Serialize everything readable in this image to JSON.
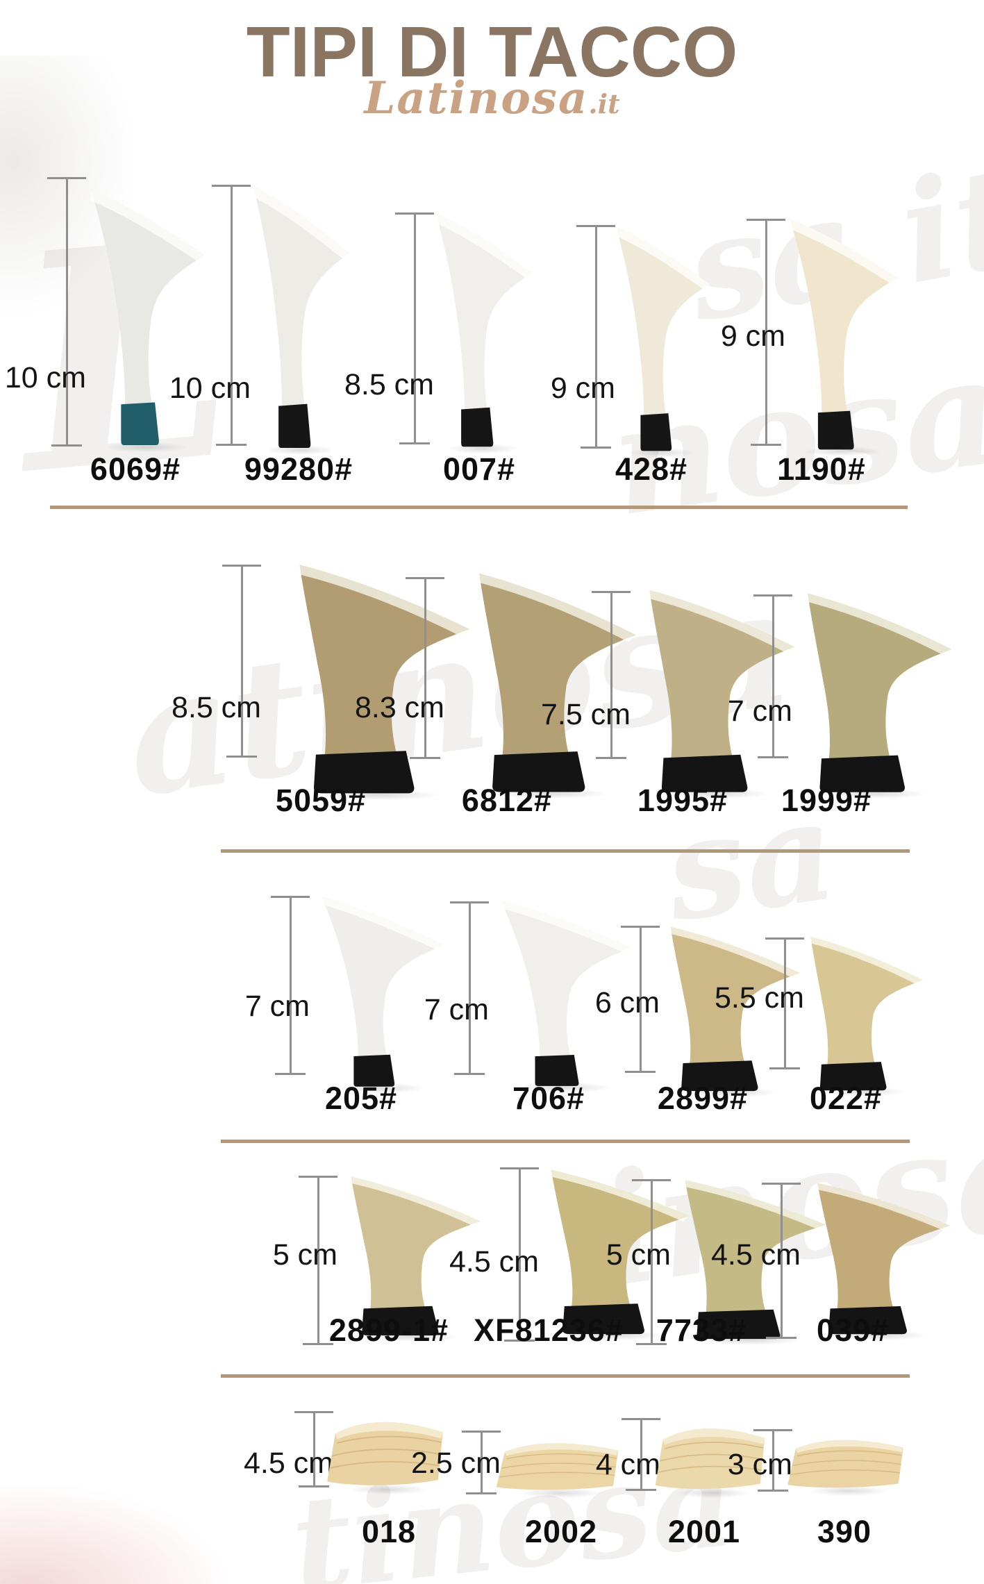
{
  "page": {
    "title": "TIPI DI TACCO",
    "title_color": "#8a7462",
    "brand": "Latinosa",
    "brand_suffix": ".it",
    "brand_color": "#c9a283",
    "divider_color": "#b2977b"
  },
  "watermarks": [
    {
      "text": "L"
    },
    {
      "text": "atinosa"
    },
    {
      "text": "sa it"
    },
    {
      "text": "nosa"
    },
    {
      "text": "inosa"
    },
    {
      "text": "tinosa"
    },
    {
      "text": "sa"
    }
  ],
  "rows": [
    {
      "items": [
        {
          "model": "6069#",
          "height_label": "10 cm",
          "shape": "stiletto",
          "body_color": "#e8e9e4",
          "tip_color": "#215e69"
        },
        {
          "model": "99280#",
          "height_label": "10 cm",
          "shape": "stiletto",
          "body_color": "#edece7",
          "tip_color": "#161616"
        },
        {
          "model": "007#",
          "height_label": "8.5 cm",
          "shape": "stiletto",
          "body_color": "#f0efeb",
          "tip_color": "#161616"
        },
        {
          "model": "428#",
          "height_label": "9 cm",
          "shape": "stiletto",
          "body_color": "#efe9d9",
          "tip_color": "#161616"
        },
        {
          "model": "1190#",
          "height_label": "9 cm",
          "shape": "stiletto",
          "body_color": "#efe6cd",
          "tip_color": "#161616"
        }
      ]
    },
    {
      "items": [
        {
          "model": "5059#",
          "height_label": "8.5 cm",
          "shape": "block",
          "body_color": "#b29d72",
          "tip_color": "#141414"
        },
        {
          "model": "6812#",
          "height_label": "8.3 cm",
          "shape": "block",
          "body_color": "#b3a175",
          "tip_color": "#141414"
        },
        {
          "model": "1995#",
          "height_label": "7.5 cm",
          "shape": "block",
          "body_color": "#c0b088",
          "tip_color": "#141414"
        },
        {
          "model": "1999#",
          "height_label": "7 cm",
          "shape": "block",
          "body_color": "#b5ab7d",
          "tip_color": "#141414"
        }
      ]
    },
    {
      "items": [
        {
          "model": "205#",
          "height_label": "7 cm",
          "shape": "stiletto",
          "body_color": "#efeeec",
          "tip_color": "#141414"
        },
        {
          "model": "706#",
          "height_label": "7 cm",
          "shape": "stiletto",
          "body_color": "#f0efeb",
          "tip_color": "#141414"
        },
        {
          "model": "2899#",
          "height_label": "6 cm",
          "shape": "block",
          "body_color": "#cdb988",
          "tip_color": "#141414"
        },
        {
          "model": "022#",
          "height_label": "5.5 cm",
          "shape": "block",
          "body_color": "#d8c795",
          "tip_color": "#141414"
        }
      ]
    },
    {
      "items": [
        {
          "model": "2899-1#",
          "height_label": "5 cm",
          "shape": "block",
          "body_color": "#cfc096",
          "tip_color": "#141414"
        },
        {
          "model": "XF81236#",
          "height_label": "4.5 cm",
          "shape": "block",
          "body_color": "#c8b77f",
          "tip_color": "#141414"
        },
        {
          "model": "7733#",
          "height_label": "5 cm",
          "shape": "block",
          "body_color": "#c4ba85",
          "tip_color": "#141414"
        },
        {
          "model": "039#",
          "height_label": "4.5 cm",
          "shape": "block",
          "body_color": "#c2aa79",
          "tip_color": "#141414"
        }
      ]
    },
    {
      "items": [
        {
          "model": "018",
          "height_label": "4.5 cm",
          "shape": "wedge",
          "body_color": "#e9d3a2"
        },
        {
          "model": "2002",
          "height_label": "2.5 cm",
          "shape": "wedge",
          "body_color": "#ecd6a6"
        },
        {
          "model": "2001",
          "height_label": "4 cm",
          "shape": "wedge",
          "body_color": "#ecd9ab"
        },
        {
          "model": "390",
          "height_label": "3 cm",
          "shape": "wedge",
          "body_color": "#ead4a3"
        }
      ]
    }
  ]
}
